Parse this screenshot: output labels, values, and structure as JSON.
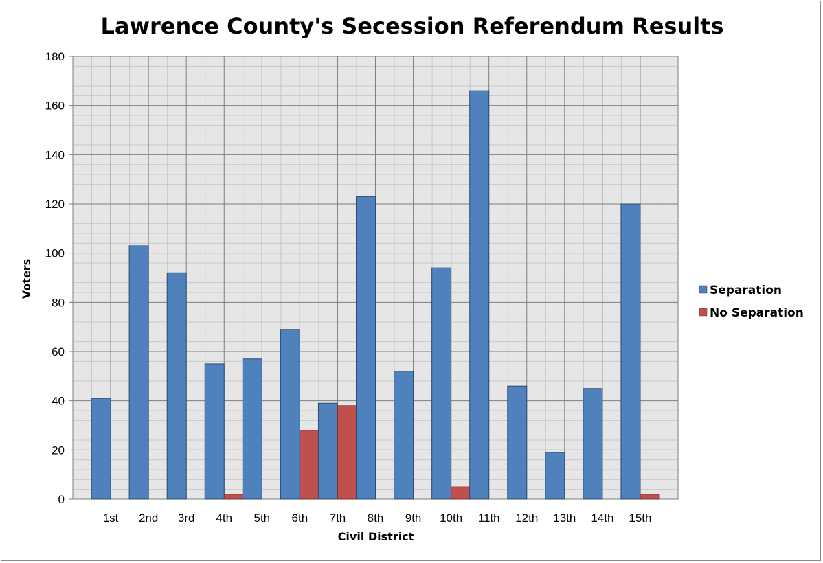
{
  "chart_data": {
    "type": "bar",
    "title": "Lawrence County's Secession Referendum Results",
    "xlabel": "Civil District",
    "ylabel": "Voters",
    "ylim": [
      0,
      180
    ],
    "yticks": [
      0,
      20,
      40,
      60,
      80,
      100,
      120,
      140,
      160,
      180
    ],
    "categories": [
      "1st",
      "2nd",
      "3rd",
      "4th",
      "5th",
      "6th",
      "7th",
      "8th",
      "9th",
      "10th",
      "11th",
      "12th",
      "13th",
      "14th",
      "15th"
    ],
    "series": [
      {
        "name": "Separation",
        "color": "#4f81bd",
        "values": [
          41,
          103,
          92,
          55,
          57,
          69,
          39,
          123,
          52,
          94,
          166,
          46,
          19,
          45,
          120
        ]
      },
      {
        "name": "No Separation",
        "color": "#c0504d",
        "values": [
          0,
          0,
          0,
          2,
          0,
          28,
          38,
          0,
          0,
          5,
          0,
          0,
          0,
          0,
          2
        ]
      }
    ],
    "grid": true,
    "plot_background": "#e6e6e6",
    "legend_position": "right"
  }
}
